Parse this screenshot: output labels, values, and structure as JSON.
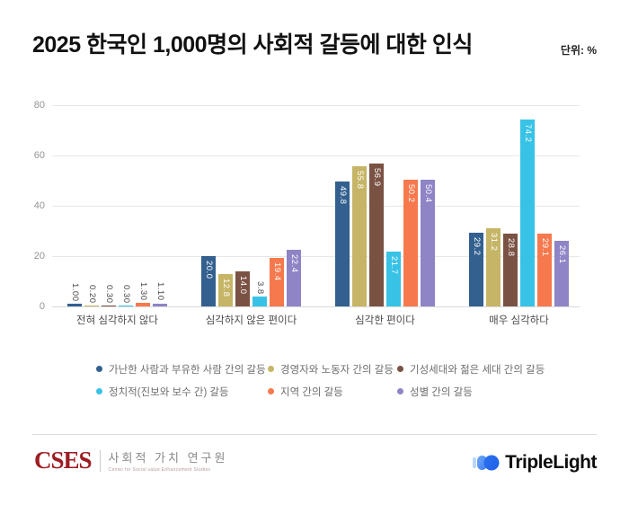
{
  "title": "2025 한국인 1,000명의 사회적 갈등에 대한 인식",
  "unit_label": "단위: %",
  "chart_data": {
    "type": "bar",
    "title": "2025 한국인 1,000명의 사회적 갈등에 대한 인식",
    "unit": "%",
    "categories": [
      "전혀 심각하지 않다",
      "심각하지 않은 편이다",
      "심각한 편이다",
      "매우 심각하다"
    ],
    "series": [
      {
        "name": "가난한 사람과 부유한 사람 간의 갈등",
        "color": "#33608f",
        "values": [
          1.0,
          20.0,
          49.8,
          29.2
        ],
        "value_labels": [
          "1.00",
          "20.0",
          "49.8",
          "29.2"
        ]
      },
      {
        "name": "경영자와 노동자 간의 갈등",
        "color": "#c6b566",
        "values": [
          0.2,
          12.8,
          55.8,
          31.2
        ],
        "value_labels": [
          "0.20",
          "12.8",
          "55.8",
          "31.2"
        ]
      },
      {
        "name": "기성세대와 젊은 세대 간의 갈등",
        "color": "#7a5244",
        "values": [
          0.3,
          14.0,
          56.9,
          28.8
        ],
        "value_labels": [
          "0.30",
          "14.0",
          "56.9",
          "28.8"
        ]
      },
      {
        "name": "정치적(진보와 보수 간) 갈등",
        "color": "#38c3e6",
        "values": [
          0.3,
          3.8,
          21.7,
          74.2
        ],
        "value_labels": [
          "0.30",
          "3.8",
          "21.7",
          "74.2"
        ]
      },
      {
        "name": "지역 간의 갈등",
        "color": "#f6794e",
        "values": [
          1.3,
          19.4,
          50.2,
          29.1
        ],
        "value_labels": [
          "1.30",
          "19.4",
          "50.2",
          "29.1"
        ]
      },
      {
        "name": "성별 간의 갈등",
        "color": "#8e84c6",
        "values": [
          1.1,
          22.4,
          50.4,
          26.1
        ],
        "value_labels": [
          "1.10",
          "22.4",
          "50.4",
          "26.1"
        ]
      }
    ],
    "ylim": [
      0,
      80
    ],
    "yticks": [
      0,
      20,
      40,
      60,
      80
    ],
    "grid": true,
    "legend_position": "bottom"
  },
  "footer": {
    "cses_acronym": "CSES",
    "cses_korean": "사회적 가치 연구원",
    "cses_english": "Center for Social value Enhancement Studies",
    "triplelight_name": "TripleLight"
  }
}
